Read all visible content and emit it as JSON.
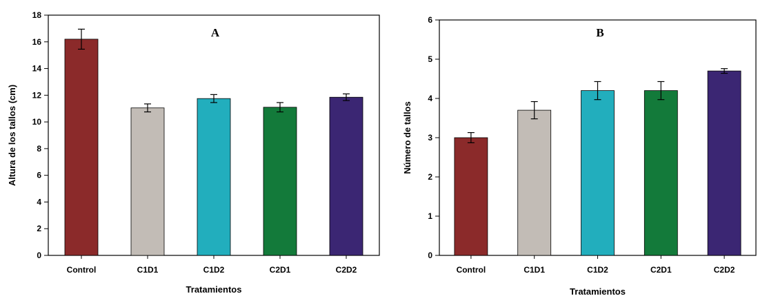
{
  "colors": {
    "Control": "#8b2a2a",
    "C1D1": "#c2bcb6",
    "C1D2": "#22aebd",
    "C2D1": "#137a3a",
    "C2D2": "#3b2673"
  },
  "chart_data": [
    {
      "type": "bar",
      "title": "A",
      "xlabel": "Tratamientos",
      "ylabel": "Altura de los tallos (cm)",
      "categories": [
        "Control",
        "C1D1",
        "C1D2",
        "C2D1",
        "C2D2"
      ],
      "values": [
        16.2,
        11.05,
        11.75,
        11.1,
        11.85
      ],
      "errors": [
        0.75,
        0.3,
        0.3,
        0.35,
        0.25
      ],
      "ylim": [
        0,
        18
      ],
      "yticks": [
        0,
        2,
        4,
        6,
        8,
        10,
        12,
        14,
        16,
        18
      ],
      "grid": false,
      "legend": "none"
    },
    {
      "type": "bar",
      "title": "B",
      "xlabel": "Tratamientos",
      "ylabel": "Número de tallos",
      "categories": [
        "Control",
        "C1D1",
        "C1D2",
        "C2D1",
        "C2D2"
      ],
      "values": [
        3.0,
        3.7,
        4.2,
        4.2,
        4.7
      ],
      "errors": [
        0.13,
        0.22,
        0.23,
        0.23,
        0.06
      ],
      "ylim": [
        0,
        6
      ],
      "yticks": [
        0,
        1,
        2,
        3,
        4,
        5,
        6
      ],
      "grid": false,
      "legend": "none"
    }
  ]
}
